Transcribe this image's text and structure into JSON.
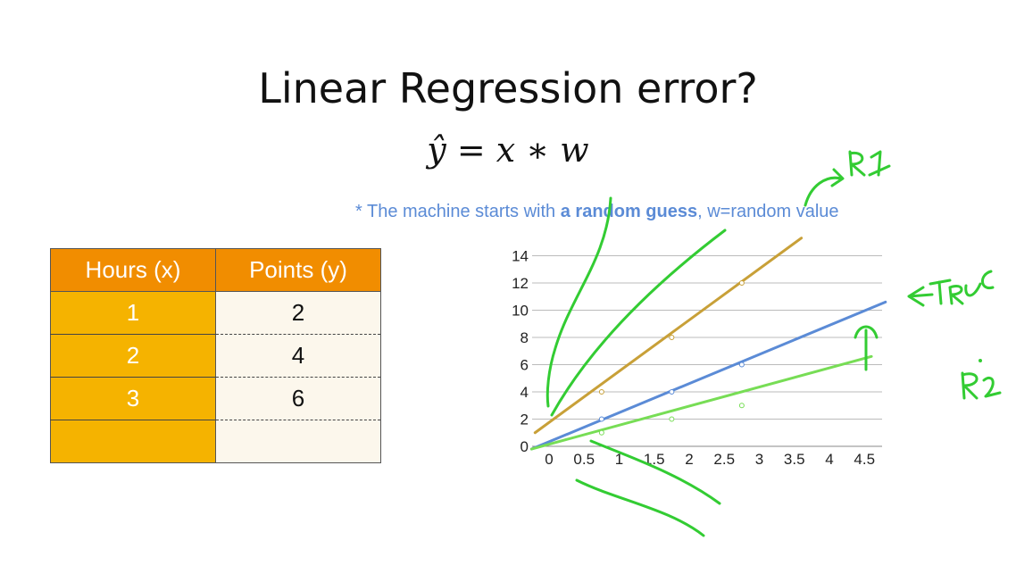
{
  "slide": {
    "title": "Linear Regression error?",
    "formula": "ŷ = x ∗ w",
    "note_prefix": "* The machine starts with ",
    "note_bold": "a random guess",
    "note_suffix": ", w=random value"
  },
  "table": {
    "headers": [
      "Hours (x)",
      "Points (y)"
    ],
    "rows": [
      [
        "1",
        "2"
      ],
      [
        "2",
        "4"
      ],
      [
        "3",
        "6"
      ],
      [
        "",
        ""
      ]
    ]
  },
  "chart_data": {
    "type": "line",
    "xlim": [
      -0.25,
      4.8
    ],
    "ylim": [
      0,
      14
    ],
    "x_ticks": [
      "0",
      "0.5",
      "1",
      "1.5",
      "2",
      "2.5",
      "3",
      "3.5",
      "4",
      "4.5"
    ],
    "y_ticks": [
      "0",
      "2",
      "4",
      "6",
      "8",
      "10",
      "12",
      "14"
    ],
    "grid": true,
    "series": [
      {
        "color": "#c8a038",
        "points": [
          [
            -0.2,
            1.0
          ],
          [
            3.6,
            15.3
          ]
        ],
        "markers": [
          [
            0.75,
            4
          ],
          [
            1.75,
            8
          ],
          [
            2.75,
            12
          ]
        ]
      },
      {
        "color": "#5b8bd6",
        "points": [
          [
            -0.25,
            -0.2
          ],
          [
            4.8,
            10.6
          ]
        ],
        "markers": [
          [
            0.75,
            2
          ],
          [
            1.75,
            4
          ],
          [
            2.75,
            6
          ]
        ]
      },
      {
        "color": "#77dd55",
        "points": [
          [
            -0.25,
            -0.2
          ],
          [
            4.6,
            6.6
          ]
        ],
        "markers": [
          [
            0.75,
            1
          ],
          [
            1.75,
            2
          ],
          [
            2.75,
            3
          ]
        ]
      }
    ],
    "annotations": {
      "handwritten_labels": [
        {
          "text": "R1",
          "color": "#33cc33"
        },
        {
          "text": "←TRUE",
          "color": "#33cc33"
        },
        {
          "text": "R2",
          "color": "#33cc33"
        }
      ]
    }
  },
  "colors": {
    "header_orange": "#f18d00",
    "cell_orange": "#f5b300",
    "cell_cream": "#fcf7ec",
    "note_blue": "#5b8bd6",
    "pen_green": "#33cc33"
  }
}
